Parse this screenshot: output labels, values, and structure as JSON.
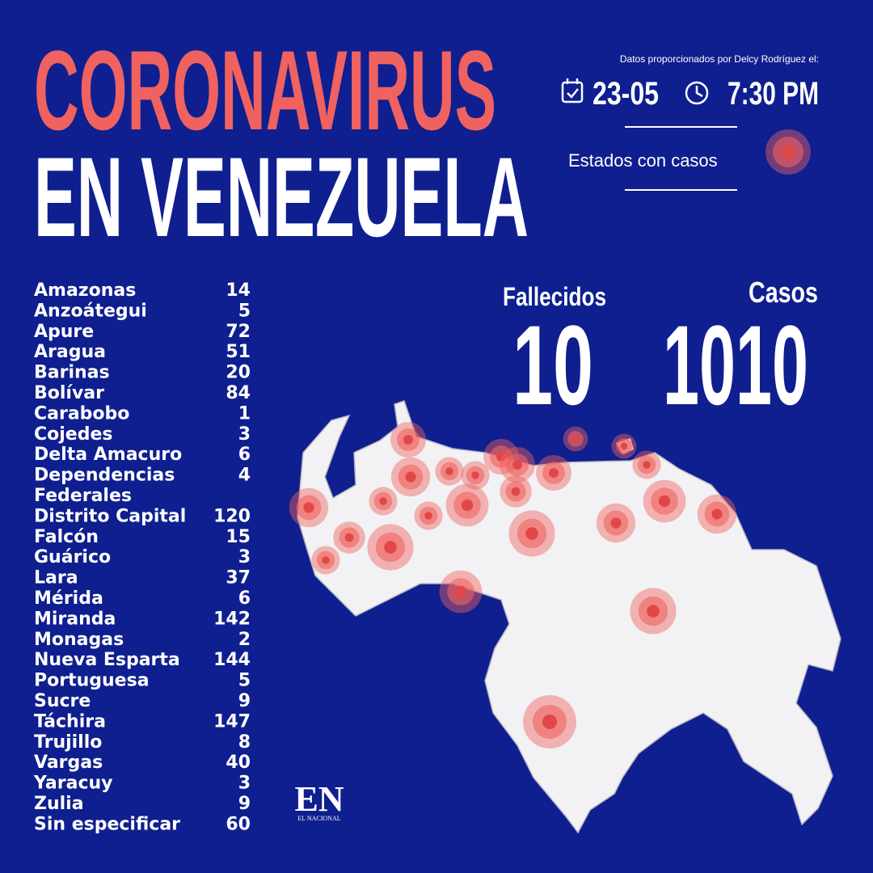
{
  "header": {
    "title_line1": "CORONAVIRUS",
    "title_line2": "EN VENEZUELA",
    "source": "Datos proporcionados por Delcy Rodríguez  el:",
    "date": "23-05",
    "time": "7:30 PM",
    "legend": "Estados con casos"
  },
  "totals": {
    "deaths_label": "Fallecidos",
    "deaths": 10,
    "cases_label": "Casos",
    "cases": 1010
  },
  "table": {
    "rows": [
      [
        "Amazonas",
        14
      ],
      [
        "Anzoátegui",
        5
      ],
      [
        "Apure",
        72
      ],
      [
        "Aragua",
        51
      ],
      [
        "Barinas",
        20
      ],
      [
        "Bolívar",
        84
      ],
      [
        "Carabobo",
        1
      ],
      [
        "Cojedes",
        3
      ],
      [
        "Delta Amacuro",
        6
      ],
      [
        "Dependencias Federales",
        4
      ],
      [
        "Distrito Capital",
        120
      ],
      [
        "Falcón",
        15
      ],
      [
        "Guárico",
        3
      ],
      [
        "Lara",
        37
      ],
      [
        "Mérida",
        6
      ],
      [
        "Miranda",
        142
      ],
      [
        "Monagas",
        2
      ],
      [
        "Nueva Esparta",
        144
      ],
      [
        "Portuguesa",
        5
      ],
      [
        "Sucre",
        9
      ],
      [
        "Táchira",
        147
      ],
      [
        "Trujillo",
        8
      ],
      [
        "Vargas",
        40
      ],
      [
        "Yaracuy",
        3
      ],
      [
        "Zulia",
        9
      ],
      [
        "Sin especificar",
        60
      ]
    ]
  },
  "logo": {
    "mark": "EN",
    "name": "EL NACIONAL"
  }
}
